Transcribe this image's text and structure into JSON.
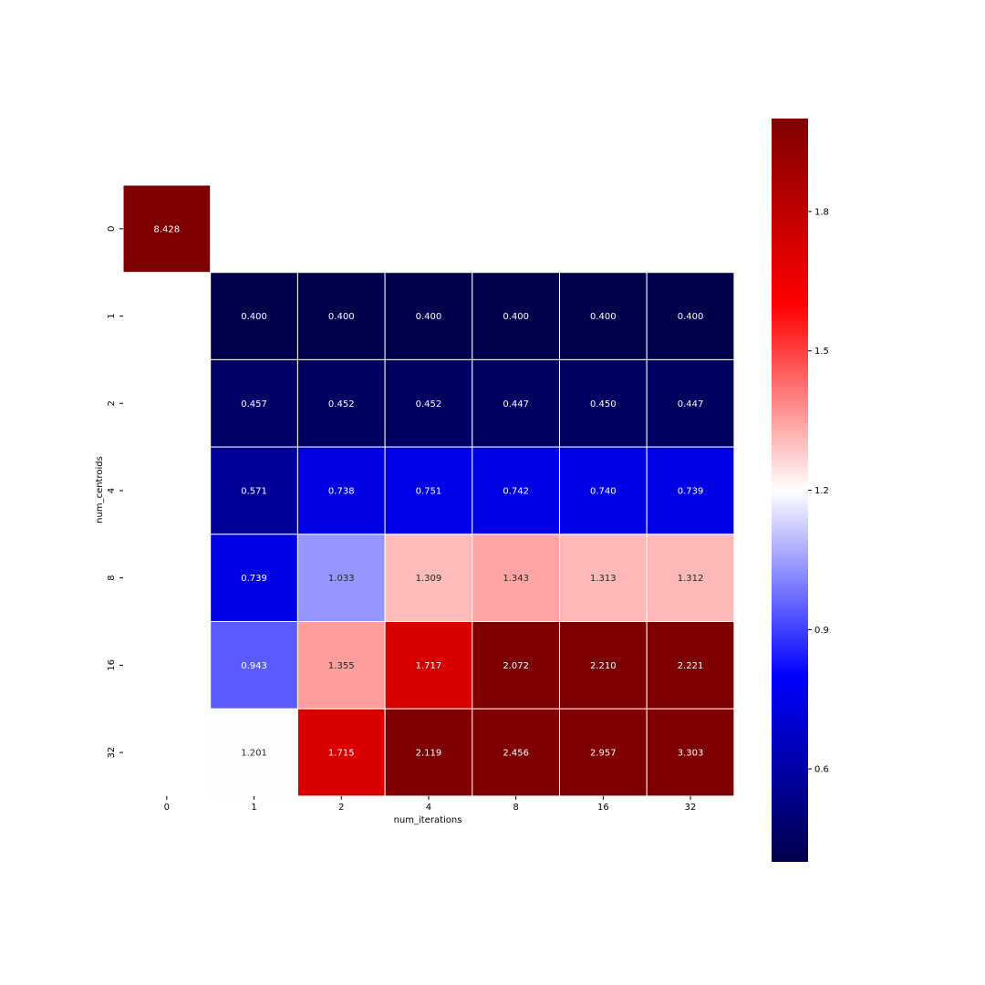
{
  "chart_data": {
    "type": "heatmap",
    "title": "",
    "xlabel": "num_iterations",
    "ylabel": "num_centroids",
    "x_categories": [
      "0",
      "1",
      "2",
      "4",
      "8",
      "16",
      "32"
    ],
    "y_categories": [
      "0",
      "1",
      "2",
      "4",
      "8",
      "16",
      "32"
    ],
    "values": [
      [
        8.428,
        null,
        null,
        null,
        null,
        null,
        null
      ],
      [
        null,
        0.4,
        0.4,
        0.4,
        0.4,
        0.4,
        0.4
      ],
      [
        null,
        0.457,
        0.452,
        0.452,
        0.447,
        0.45,
        0.447
      ],
      [
        null,
        0.571,
        0.738,
        0.751,
        0.742,
        0.74,
        0.739
      ],
      [
        null,
        0.739,
        1.033,
        1.309,
        1.343,
        1.313,
        1.312
      ],
      [
        null,
        0.943,
        1.355,
        1.717,
        2.072,
        2.21,
        2.221
      ],
      [
        null,
        1.201,
        1.715,
        2.119,
        2.456,
        2.957,
        3.303
      ]
    ],
    "value_format": "3 decimals",
    "colormap": "seismic",
    "colormap_stops": [
      "#00004c",
      "#0000ff",
      "#ffffff",
      "#ff0000",
      "#7f0000"
    ],
    "vmin": 0.4,
    "vmax": 2.0,
    "colorbar_ticks": [
      "0.6",
      "0.9",
      "1.2",
      "1.5",
      "1.8"
    ],
    "colorbar_tick_values": [
      0.6,
      0.9,
      1.2,
      1.5,
      1.8
    ],
    "grid_lines_color": "#ffffff"
  }
}
